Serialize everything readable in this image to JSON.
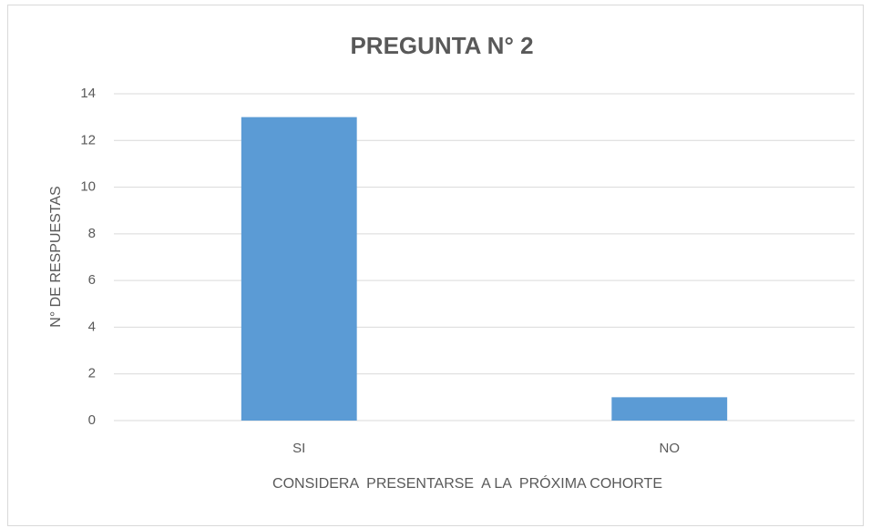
{
  "chart_data": {
    "type": "bar",
    "title": "PREGUNTA N° 2",
    "x_label": "CONSIDERA  PRESENTARSE  A LA  PRÓXIMA COHORTE",
    "y_label": "N° DE RESPUESTAS",
    "categories": [
      "SI",
      "NO"
    ],
    "values": [
      13,
      1
    ],
    "color": "#5b9bd5",
    "ylim": [
      0,
      14
    ],
    "yticks": [
      0,
      2,
      4,
      6,
      8,
      10,
      12,
      14
    ],
    "grid": true
  }
}
